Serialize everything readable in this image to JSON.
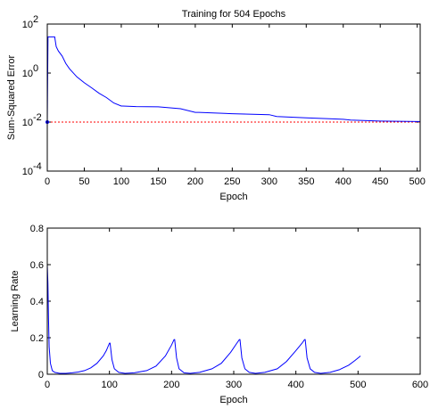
{
  "chart_data": [
    {
      "type": "line",
      "title": "Training for 504 Epochs",
      "xlabel": "Epoch",
      "ylabel": "Sum-Squared Error",
      "xlim": [
        0,
        504
      ],
      "ylim": [
        0.0001,
        100
      ],
      "yscale": "log",
      "xticks": [
        "0",
        "50",
        "100",
        "150",
        "200",
        "250",
        "300",
        "350",
        "400",
        "450",
        "500"
      ],
      "yticks": [
        {
          "base": "10",
          "exp": "-4",
          "value": 0.0001
        },
        {
          "base": "10",
          "exp": "-2",
          "value": 0.01
        },
        {
          "base": "10",
          "exp": "0",
          "value": 1
        },
        {
          "base": "10",
          "exp": "2",
          "value": 100
        }
      ],
      "goal": 0.01,
      "series": [
        {
          "color": "#0000ff",
          "x": [
            0,
            1,
            5,
            10,
            12,
            15,
            20,
            25,
            30,
            40,
            50,
            60,
            70,
            80,
            90,
            100,
            102,
            120,
            150,
            180,
            200,
            205,
            250,
            300,
            310,
            350,
            400,
            410,
            450,
            500,
            504
          ],
          "y": [
            0.01,
            30,
            30,
            30,
            12,
            8,
            5,
            2.5,
            1.5,
            0.7,
            0.4,
            0.25,
            0.15,
            0.1,
            0.06,
            0.045,
            0.045,
            0.043,
            0.042,
            0.035,
            0.025,
            0.025,
            0.022,
            0.02,
            0.017,
            0.015,
            0.013,
            0.012,
            0.011,
            0.0105,
            0.0105
          ]
        }
      ],
      "goal_color": "#ff0000"
    },
    {
      "type": "line",
      "title": "",
      "xlabel": "Epoch",
      "ylabel": "Learning Rate",
      "xlim": [
        0,
        600
      ],
      "ylim": [
        0,
        0.8
      ],
      "xticks": [
        "0",
        "100",
        "200",
        "300",
        "400",
        "500",
        "600"
      ],
      "yticks": [
        "0",
        "0.2",
        "0.4",
        "0.6",
        "0.8"
      ],
      "series": [
        {
          "color": "#0000ff",
          "x": [
            0,
            1,
            2,
            3,
            5,
            8,
            12,
            20,
            30,
            40,
            50,
            60,
            70,
            80,
            90,
            95,
            100,
            101,
            104,
            108,
            115,
            125,
            140,
            160,
            175,
            190,
            200,
            204,
            205,
            208,
            212,
            220,
            230,
            245,
            265,
            280,
            295,
            305,
            309,
            310,
            313,
            318,
            325,
            335,
            350,
            370,
            385,
            400,
            410,
            414,
            415,
            418,
            423,
            430,
            440,
            455,
            470,
            485,
            495,
            504
          ],
          "y": [
            0.6,
            0.5,
            0.3,
            0.15,
            0.06,
            0.02,
            0.01,
            0.005,
            0.005,
            0.008,
            0.012,
            0.02,
            0.035,
            0.06,
            0.1,
            0.13,
            0.17,
            0.17,
            0.08,
            0.03,
            0.01,
            0.005,
            0.008,
            0.02,
            0.045,
            0.1,
            0.16,
            0.19,
            0.19,
            0.09,
            0.03,
            0.008,
            0.005,
            0.01,
            0.03,
            0.06,
            0.12,
            0.17,
            0.19,
            0.19,
            0.09,
            0.03,
            0.01,
            0.005,
            0.01,
            0.03,
            0.07,
            0.13,
            0.17,
            0.19,
            0.19,
            0.09,
            0.03,
            0.01,
            0.005,
            0.01,
            0.025,
            0.05,
            0.075,
            0.1
          ]
        }
      ]
    }
  ]
}
